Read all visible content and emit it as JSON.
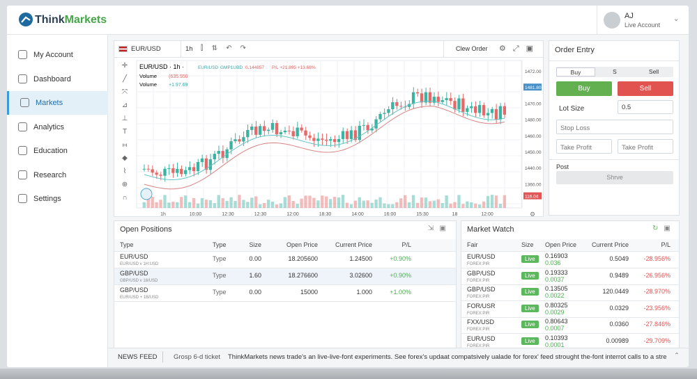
{
  "header": {
    "logo_prefix": "Think",
    "logo_suffix": "Markets",
    "user_initials": "AJ",
    "user_account": "Live Account"
  },
  "sidebar": [
    "My Account",
    "Dashboard",
    "Markets",
    "Analytics",
    "Education",
    "Research",
    "Settings"
  ],
  "toolbar": {
    "symbol": "EUR/USD",
    "timeframe": "1h",
    "order_type": "Clew Order"
  },
  "chart": {
    "legend": {
      "title": "EUR/USD · 1h ·",
      "pair": "EUR/USD",
      "code": "GMP1UBD",
      "price": "0.144857",
      "pl": "P/L +21.895 +13.68%",
      "volume_label_1": "Volume",
      "volume_value_1": "(635.550",
      "volume_label_2": "Volume",
      "volume_value_2": "+1.97.69"
    },
    "y_labels": [
      "1472.00",
      "1481.80",
      "1470.00",
      "1480.00",
      "1460.00",
      "1450.00",
      "1440.00",
      "1360.00",
      "116.04"
    ],
    "x_labels": [
      "1h",
      "10:00",
      "12:30",
      "12:30",
      "12:00",
      "18:30",
      "14:00",
      "16:00",
      "15:30",
      "18",
      "12:00"
    ]
  },
  "order_entry": {
    "title": "Order Entry",
    "tabs": [
      "Buy",
      "S",
      "Sell"
    ],
    "buy": "Buy",
    "sell": "Sell",
    "lot_label": "Lot Size",
    "lot_value": "0.5",
    "stop_loss": "Stop Loss",
    "take_profit_1": "Take Profit",
    "take_profit_2": "Take Profit",
    "post": "Post",
    "save": "Shrve"
  },
  "open_positions": {
    "title": "Open Positions",
    "columns": [
      "Type",
      "Type",
      "Size",
      "Open Price",
      "Current Price",
      "P/L"
    ],
    "rows": [
      {
        "symbol": "EUR/USD",
        "sub": "EUR/USD v 1H:USD",
        "type": "Type",
        "size": "0.00",
        "open": "18.205600",
        "current": "1.24500",
        "pl": "+0.90%"
      },
      {
        "symbol": "GBP/USD",
        "sub": "GBP/USD v 18/USD",
        "type": "Type",
        "size": "1.60",
        "open": "18.276600",
        "current": "3.02600",
        "pl": "+0.90%"
      },
      {
        "symbol": "GBP/USD",
        "sub": "EUR/USD + 1B/USD",
        "type": "Type",
        "size": "0.00",
        "open": "15000",
        "current": "1.000",
        "pl": "+1.00%"
      }
    ]
  },
  "market_watch": {
    "title": "Market Watch",
    "columns": [
      "Fair",
      "Size",
      "Open Price",
      "Current Price",
      "P/L"
    ],
    "rows": [
      {
        "symbol": "EUR/USD",
        "sub": "FOREX:PIR",
        "size": "Live",
        "open": "0.16903",
        "open_sub": "0.036",
        "current": "0.5049",
        "pl": "-28.956%"
      },
      {
        "symbol": "GBP/USD",
        "sub": "FOREX:PIR",
        "size": "Live",
        "open": "0.19333",
        "open_sub": "0.0037",
        "current": "0.9489",
        "pl": "-26.956%"
      },
      {
        "symbol": "GBP/USD",
        "sub": "FOREX:PIR",
        "size": "Live",
        "open": "0.13505",
        "open_sub": "0.0022",
        "current": "120.0449",
        "pl": "-28.970%"
      },
      {
        "symbol": "FOR/USR",
        "sub": "FOREX:PIR",
        "size": "Live",
        "open": "0.80325",
        "open_sub": "0.0029",
        "current": "0.0329",
        "pl": "-23.956%"
      },
      {
        "symbol": "FXX/USD",
        "sub": "FOREX:PIR",
        "size": "Live",
        "open": "0.80643",
        "open_sub": "0.0007",
        "current": "0.0360",
        "pl": "-27.846%"
      },
      {
        "symbol": "EUR/USD",
        "sub": "FOREX:PIR",
        "size": "Live",
        "open": "0.10393",
        "open_sub": "0.0001",
        "current": "0.00989",
        "pl": "-29.709%"
      }
    ]
  },
  "news": {
    "label": "NEWS FEED",
    "ticket": "Grosp 6-d ticket",
    "text": "ThinkMarkets news trade's an live-live-font experiments. See forex's updaat compatsively ualade for forex' feed strought the-font interrot calls to a stre..."
  }
}
